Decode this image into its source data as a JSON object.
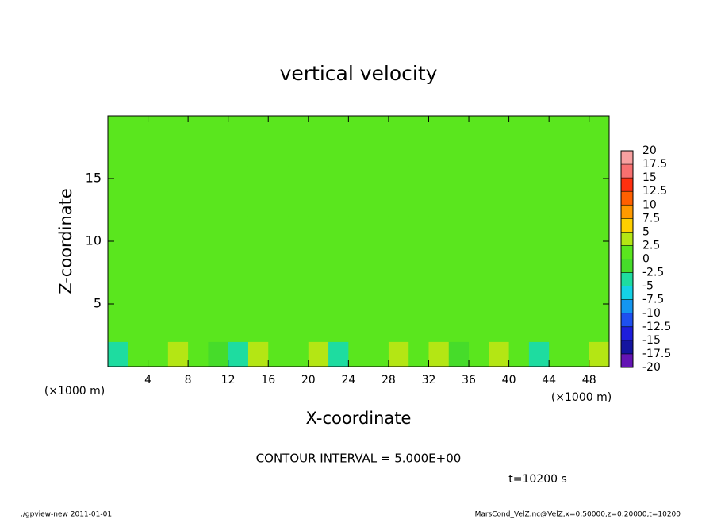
{
  "chart_data": {
    "type": "heatmap",
    "title": "vertical velocity",
    "xlabel": "X-coordinate",
    "ylabel": "Z-coordinate",
    "x_unit": "(×1000 m)",
    "annotations": [
      "CONTOUR INTERVAL = 5.000E+00",
      "t=10200 s",
      "./gpview-new  2011-01-01",
      "MarsCond_VelZ.nc@VelZ,x=0:50000,z=0:20000,t=10200"
    ],
    "xlim": [
      0,
      50
    ],
    "ylim": [
      0,
      20
    ],
    "xticks": [
      4,
      8,
      12,
      16,
      20,
      24,
      28,
      32,
      36,
      40,
      44,
      48
    ],
    "yticks": [
      5,
      10,
      15
    ],
    "x": [
      1,
      3,
      5,
      7,
      9,
      11,
      13,
      15,
      17,
      19,
      21,
      23,
      25,
      27,
      29,
      31,
      33,
      35,
      37,
      39,
      41,
      43,
      45,
      47,
      49
    ],
    "z": [
      1,
      3,
      5,
      7,
      9,
      11,
      13,
      15,
      17,
      19
    ],
    "values": [
      [
        -3,
        1,
        2,
        3,
        1.5,
        -1,
        -3,
        3,
        2,
        1,
        3,
        -3,
        0.5,
        2,
        3,
        0.5,
        2.5,
        -1,
        0.5,
        3,
        0.5,
        -3,
        0.5,
        1,
        3
      ],
      [
        0.5,
        1,
        1.5,
        2,
        1,
        0.5,
        1,
        2,
        1.5,
        1,
        2,
        0.5,
        1,
        1.5,
        2,
        1,
        1.5,
        0.5,
        1,
        2,
        1,
        0.5,
        1,
        1,
        2
      ],
      [
        0.5,
        0.5,
        0.5,
        1,
        0.5,
        0.5,
        0.5,
        1,
        0.5,
        0.5,
        1,
        0.5,
        0.5,
        1,
        1,
        0.5,
        0.5,
        0.5,
        0.5,
        1,
        0.5,
        0.5,
        0.5,
        0.5,
        1
      ],
      [
        0.5,
        0.5,
        0.5,
        0.5,
        0.5,
        0.5,
        0.5,
        0.5,
        0.5,
        0.5,
        0.5,
        0.5,
        0.5,
        0.5,
        0.5,
        0.5,
        0.5,
        0.5,
        0.5,
        0.5,
        0.5,
        0.5,
        0.5,
        0.5,
        0.5
      ],
      [
        0.5,
        0.5,
        0.5,
        0.5,
        0.5,
        0.5,
        0.5,
        0.5,
        0.5,
        0.5,
        0.5,
        0.5,
        0.5,
        0.5,
        0.5,
        0.5,
        0.5,
        0.5,
        0.5,
        0.5,
        0.5,
        0.5,
        0.5,
        0.5,
        0.5
      ],
      [
        0.5,
        0.5,
        0.5,
        0.5,
        0.5,
        0.5,
        0.5,
        0.5,
        0.5,
        0.5,
        0.5,
        0.5,
        0.5,
        0.5,
        0.5,
        0.5,
        0.5,
        0.5,
        0.5,
        0.5,
        0.5,
        0.5,
        0.5,
        0.5,
        0.5
      ],
      [
        0.5,
        0.5,
        0.5,
        0.5,
        0.5,
        0.5,
        0.5,
        0.5,
        0.5,
        0.5,
        0.5,
        0.5,
        0.5,
        0.5,
        0.5,
        0.5,
        0.5,
        0.5,
        0.5,
        0.5,
        0.5,
        0.5,
        0.5,
        0.5,
        0.5
      ],
      [
        0.5,
        0.5,
        0.5,
        0.5,
        0.5,
        0.5,
        0.5,
        0.5,
        0.5,
        0.5,
        0.5,
        0.5,
        0.5,
        0.5,
        0.5,
        0.5,
        0.5,
        0.5,
        0.5,
        0.5,
        0.5,
        0.5,
        0.5,
        0.5,
        0.5
      ],
      [
        0.5,
        0.5,
        0.5,
        0.5,
        0.5,
        0.5,
        0.5,
        0.5,
        0.5,
        0.5,
        0.5,
        0.5,
        0.5,
        0.5,
        0.5,
        0.5,
        0.5,
        0.5,
        0.5,
        0.5,
        0.5,
        0.5,
        0.5,
        0.5,
        0.5
      ],
      [
        0.5,
        0.5,
        0.5,
        0.5,
        0.5,
        0.5,
        0.5,
        0.5,
        0.5,
        0.5,
        0.5,
        0.5,
        0.5,
        0.5,
        0.5,
        0.5,
        0.5,
        0.5,
        0.5,
        0.5,
        0.5,
        0.5,
        0.5,
        0.5,
        0.5
      ]
    ],
    "colorbar": {
      "levels": [
        20,
        17.5,
        15,
        12.5,
        10,
        7.5,
        5,
        2.5,
        0,
        -2.5,
        -5,
        -7.5,
        -10,
        -12.5,
        -15,
        -17.5,
        -20
      ],
      "colors": [
        "#f8a0a0",
        "#f87070",
        "#ff3010",
        "#ff6000",
        "#ff9a00",
        "#ffd000",
        "#b4e614",
        "#5ae61e",
        "#46dc2a",
        "#1edca0",
        "#14d2e6",
        "#1496f0",
        "#1e50f0",
        "#1e1edc",
        "#1414a0",
        "#6414b4"
      ]
    }
  }
}
